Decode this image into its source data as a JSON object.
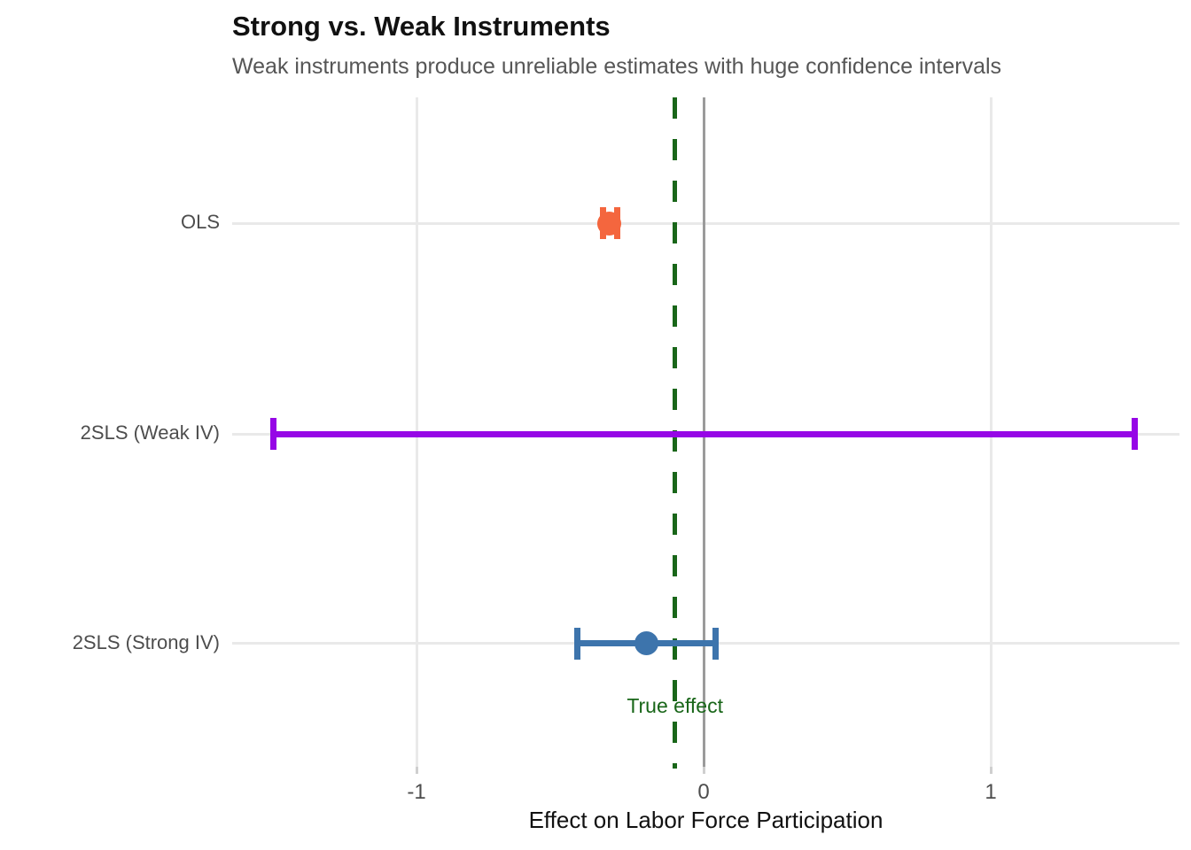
{
  "header": {
    "title": "Strong vs. Weak Instruments",
    "subtitle": "Weak instruments produce unreliable estimates with huge confidence intervals"
  },
  "chart_data": {
    "type": "errorbar",
    "orientation": "horizontal",
    "title": "Strong vs. Weak Instruments",
    "subtitle": "Weak instruments produce unreliable estimates with huge confidence intervals",
    "xlabel": "Effect on Labor Force Participation",
    "ylabel": "",
    "categories": [
      "OLS",
      "2SLS (Weak IV)",
      "2SLS (Strong IV)"
    ],
    "series": [
      {
        "name": "OLS",
        "estimate": -0.33,
        "ci_low": -0.35,
        "ci_high": -0.3,
        "color": "#f4663e",
        "point_visible": true
      },
      {
        "name": "2SLS (Weak IV)",
        "estimate": null,
        "ci_low": -1.5,
        "ci_high": 1.5,
        "color": "#9606e6",
        "point_visible": false
      },
      {
        "name": "2SLS (Strong IV)",
        "estimate": -0.2,
        "ci_low": -0.44,
        "ci_high": 0.04,
        "color": "#3d74ac",
        "point_visible": true
      }
    ],
    "true_effect": {
      "value": -0.1,
      "label": "True effect",
      "color": "#196619",
      "linestyle": "dashed"
    },
    "reference_line": {
      "value": 0,
      "color": "#9b9b9b",
      "linestyle": "solid"
    },
    "xticks": [
      -1,
      0,
      1
    ],
    "xtick_labels": [
      "-1",
      "0",
      "1"
    ],
    "xlim": [
      -1.642,
      1.657
    ],
    "grid": true,
    "legend": false,
    "row_fracs": [
      0.188,
      0.503,
      0.816
    ]
  }
}
